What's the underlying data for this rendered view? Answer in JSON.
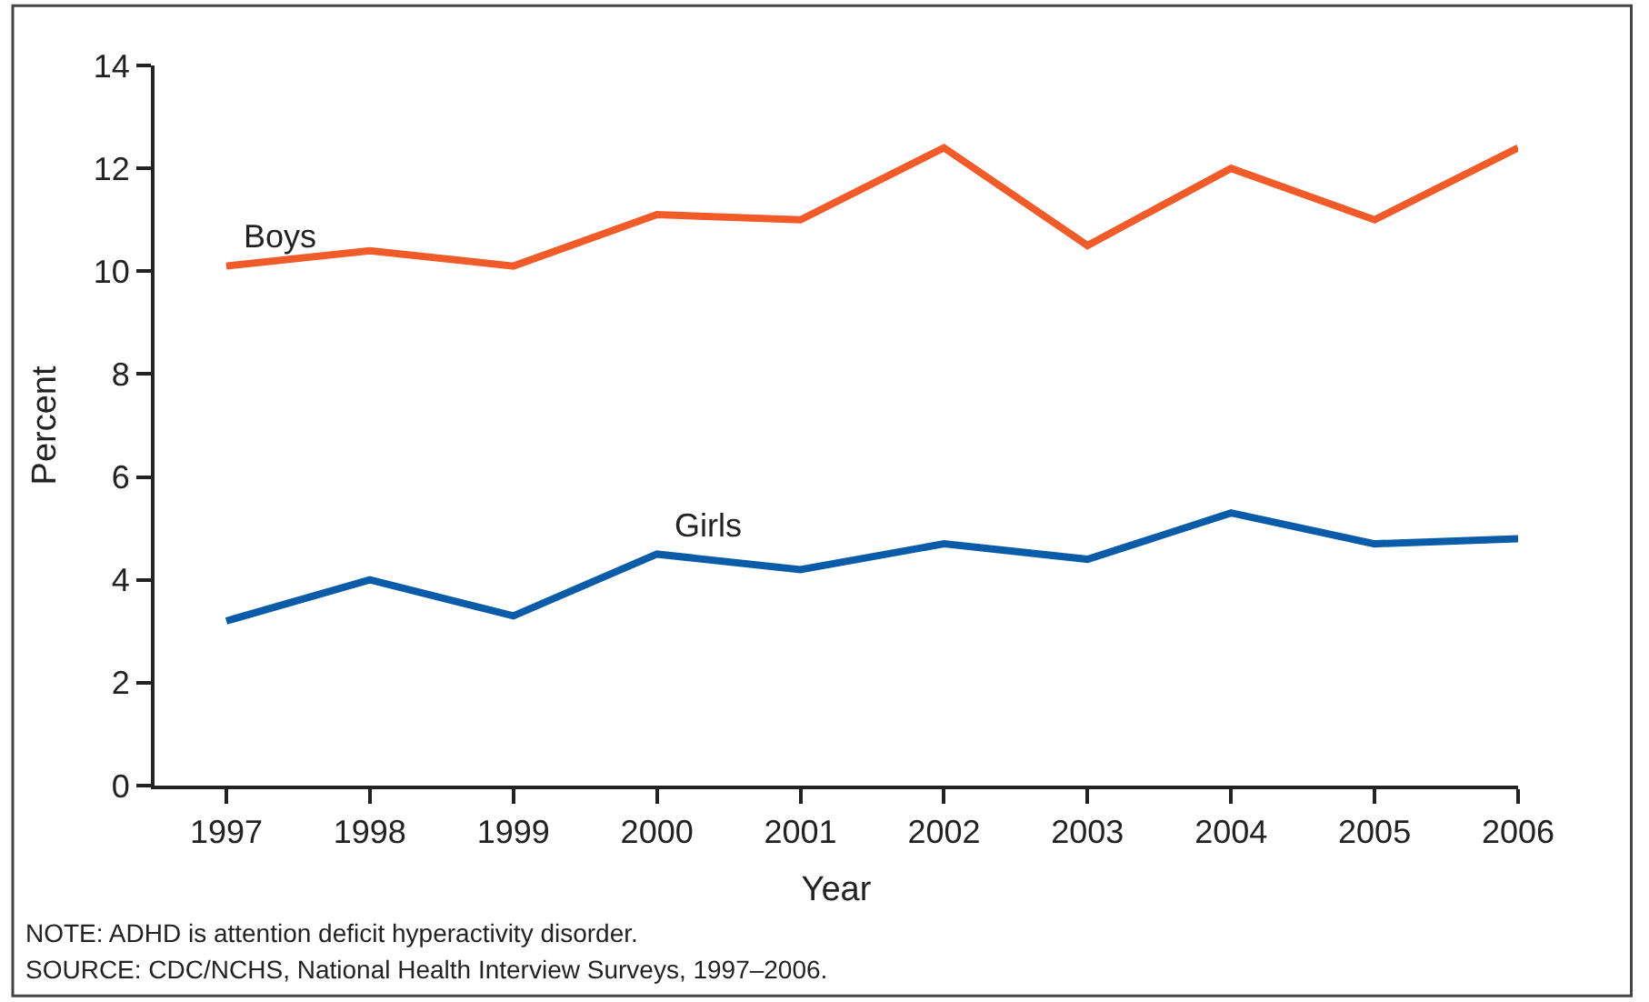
{
  "chart_data": {
    "type": "line",
    "x": [
      1997,
      1998,
      1999,
      2000,
      2001,
      2002,
      2003,
      2004,
      2005,
      2006
    ],
    "series": [
      {
        "name": "Boys",
        "color": "#f15a29",
        "values": [
          10.1,
          10.4,
          10.1,
          11.1,
          11.0,
          12.4,
          10.5,
          12.0,
          11.0,
          12.4
        ]
      },
      {
        "name": "Girls",
        "color": "#0b5ca8",
        "values": [
          3.2,
          4.0,
          3.3,
          4.5,
          4.2,
          4.7,
          4.4,
          5.3,
          4.7,
          4.8
        ]
      }
    ],
    "xlabel": "Year",
    "ylabel": "Percent",
    "xlim": [
      1996.5,
      2006
    ],
    "xticks": [
      1997,
      1998,
      1999,
      2000,
      2001,
      2002,
      2003,
      2004,
      2005,
      2006
    ],
    "ylim": [
      0,
      14
    ],
    "yticks": [
      0,
      2,
      4,
      6,
      8,
      10,
      12,
      14
    ],
    "legend": false,
    "marker": "none",
    "line_style": "solid",
    "annotations": [
      "NOTE: ADHD is attention deficit hyperactivity disorder.",
      "SOURCE: CDC/NCHS, National Health Interview Surveys, 1997–2006."
    ]
  }
}
